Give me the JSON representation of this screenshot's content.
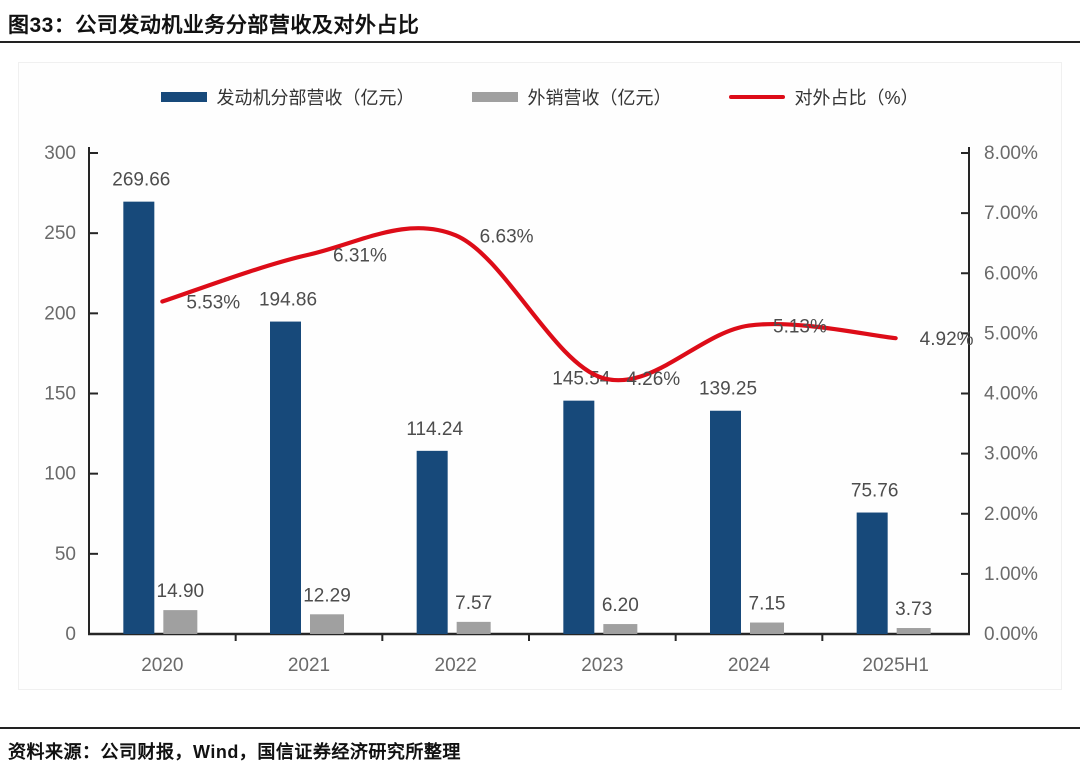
{
  "header": {
    "title": "图33：公司发动机业务分部营收及对外占比"
  },
  "footer": {
    "source": "资料来源：公司财报，Wind，国信证券经济研究所整理"
  },
  "legend": {
    "engine_revenue": "发动机分部营收（亿元）",
    "export_revenue": "外销营收（亿元）",
    "export_ratio": "对外占比（%）"
  },
  "colors": {
    "engine_bar": "#17497a",
    "export_bar": "#a0a0a0",
    "ratio_line": "#dd0c18",
    "axis_line": "#262626",
    "tick_text": "#6a6a6a",
    "data_label": "#4d4d4d"
  },
  "chart_data": {
    "type": "bar",
    "subtype": "grouped-bars-with-line",
    "categories": [
      "2020",
      "2021",
      "2022",
      "2023",
      "2024",
      "2025H1"
    ],
    "series": [
      {
        "name": "发动机分部营收（亿元）",
        "type": "bar",
        "axis": "left",
        "values": [
          269.66,
          194.86,
          114.24,
          145.54,
          139.25,
          75.76
        ],
        "labels": [
          "269.66",
          "194.86",
          "114.24",
          "145.54",
          "139.25",
          "75.76"
        ]
      },
      {
        "name": "外销营收（亿元）",
        "type": "bar",
        "axis": "left",
        "values": [
          14.9,
          12.29,
          7.57,
          6.2,
          7.15,
          3.73
        ],
        "labels": [
          "14.90",
          "12.29",
          "7.57",
          "6.20",
          "7.15",
          "3.73"
        ]
      },
      {
        "name": "对外占比（%）",
        "type": "line",
        "axis": "right",
        "values": [
          5.53,
          6.31,
          6.63,
          4.26,
          5.13,
          4.92
        ],
        "labels": [
          "5.53%",
          "6.31%",
          "6.63%",
          "4.26%",
          "5.13%",
          "4.92%"
        ]
      }
    ],
    "left_axis": {
      "min": 0,
      "max": 300,
      "step": 50,
      "tick_labels": [
        "0",
        "50",
        "100",
        "150",
        "200",
        "250",
        "300"
      ]
    },
    "right_axis": {
      "min": 0,
      "max": 8,
      "step": 1,
      "tick_labels": [
        "0.00%",
        "1.00%",
        "2.00%",
        "3.00%",
        "4.00%",
        "5.00%",
        "6.00%",
        "7.00%",
        "8.00%"
      ]
    },
    "grid": false,
    "legend_position": "top"
  }
}
